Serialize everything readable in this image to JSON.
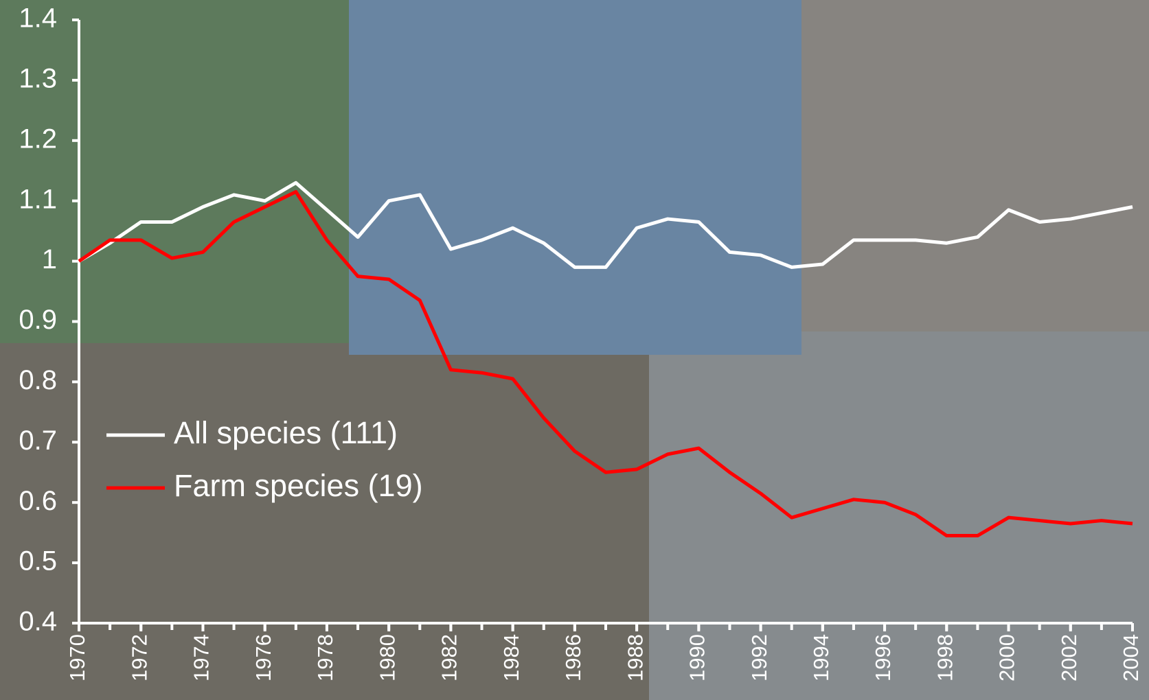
{
  "chart_data": {
    "type": "line",
    "x": [
      1970,
      1971,
      1972,
      1973,
      1974,
      1975,
      1976,
      1977,
      1978,
      1979,
      1980,
      1981,
      1982,
      1983,
      1984,
      1985,
      1986,
      1987,
      1988,
      1989,
      1990,
      1991,
      1992,
      1993,
      1994,
      1995,
      1996,
      1997,
      1998,
      1999,
      2000,
      2001,
      2002,
      2003,
      2004
    ],
    "series": [
      {
        "name": "All species (111)",
        "color": "#ffffff",
        "values": [
          1.0,
          1.03,
          1.065,
          1.065,
          1.09,
          1.11,
          1.1,
          1.13,
          1.085,
          1.04,
          1.1,
          1.11,
          1.02,
          1.035,
          1.055,
          1.03,
          0.99,
          0.99,
          1.055,
          1.07,
          1.065,
          1.015,
          1.01,
          0.99,
          0.995,
          1.035,
          1.035,
          1.035,
          1.03,
          1.04,
          1.085,
          1.065,
          1.07,
          1.08,
          1.09
        ]
      },
      {
        "name": "Farm species (19)",
        "color": "#ff0000",
        "values": [
          1.0,
          1.035,
          1.035,
          1.005,
          1.015,
          1.065,
          1.09,
          1.115,
          1.035,
          0.975,
          0.97,
          0.935,
          0.82,
          0.815,
          0.805,
          0.74,
          0.685,
          0.65,
          0.655,
          0.68,
          0.69,
          0.65,
          0.615,
          0.575,
          0.59,
          0.605,
          0.6,
          0.58,
          0.545,
          0.545,
          0.575,
          0.57,
          0.565,
          0.57,
          0.565
        ]
      }
    ],
    "xlim": [
      1970,
      2004
    ],
    "xticks": [
      1970,
      1972,
      1974,
      1976,
      1978,
      1980,
      1982,
      1984,
      1986,
      1988,
      1990,
      1992,
      1994,
      1996,
      1998,
      2000,
      2002,
      2004
    ],
    "ylim": [
      0.4,
      1.4
    ],
    "yticks": [
      0.4,
      0.5,
      0.6,
      0.7,
      0.8,
      0.9,
      1,
      1.1,
      1.2,
      1.3,
      1.4
    ],
    "grid": false,
    "legend": "left"
  }
}
